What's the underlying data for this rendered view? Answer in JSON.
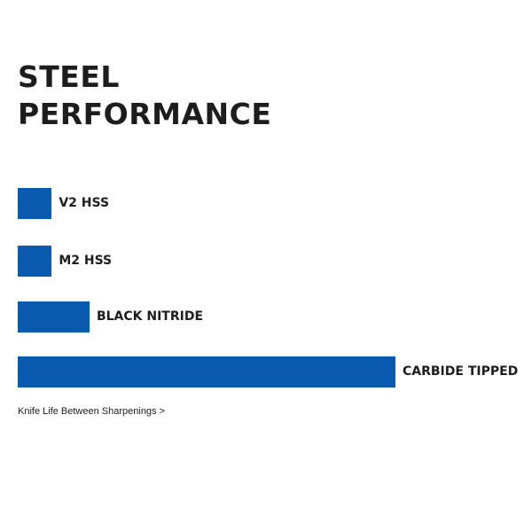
{
  "chart_data": {
    "type": "bar",
    "orientation": "horizontal",
    "title": "STEEL PERFORMANCE",
    "categories": [
      "V2 HSS",
      "M2 HSS",
      "BLACK NITRIDE",
      "CARBIDE TIPPED"
    ],
    "values": [
      9,
      9,
      19,
      100
    ],
    "color": "#0a5bb0",
    "x_label": "Knife Life Between Sharpenings >"
  }
}
